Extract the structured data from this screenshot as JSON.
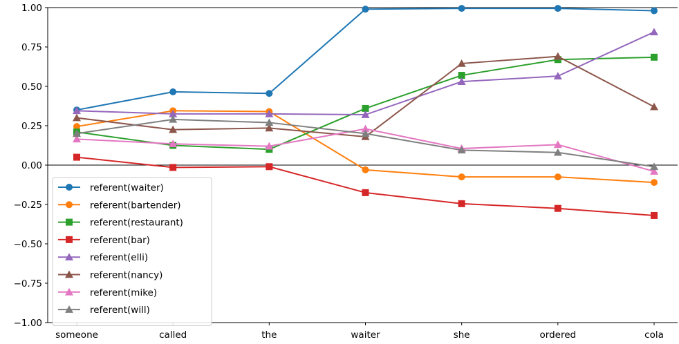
{
  "chart_data": {
    "type": "line",
    "categories": [
      "someone",
      "called",
      "the",
      "waiter",
      "she",
      "ordered",
      "cola"
    ],
    "ylim": [
      -1.0,
      1.0
    ],
    "yticks": [
      -1.0,
      -0.75,
      -0.5,
      -0.25,
      0.0,
      0.25,
      0.5,
      0.75,
      1.0
    ],
    "ytick_labels": [
      "−1.00",
      "−0.75",
      "−0.50",
      "−0.25",
      "0.00",
      "0.25",
      "0.50",
      "0.75",
      "1.00"
    ],
    "zero_line": true,
    "grid": false,
    "legend_position": "lower-left",
    "series": [
      {
        "name": "referent(waiter)",
        "color": "#1f77b4",
        "marker": "circle",
        "values": [
          0.35,
          0.465,
          0.455,
          0.99,
          0.995,
          0.995,
          0.98
        ]
      },
      {
        "name": "referent(bartender)",
        "color": "#ff7f0e",
        "marker": "circle",
        "values": [
          0.245,
          0.345,
          0.34,
          -0.03,
          -0.075,
          -0.075,
          -0.11
        ]
      },
      {
        "name": "referent(restaurant)",
        "color": "#2ca02c",
        "marker": "square",
        "values": [
          0.21,
          0.125,
          0.1,
          0.36,
          0.57,
          0.67,
          0.685
        ]
      },
      {
        "name": "referent(bar)",
        "color": "#d62728",
        "marker": "square",
        "values": [
          0.05,
          -0.015,
          -0.01,
          -0.175,
          -0.245,
          -0.275,
          -0.32
        ]
      },
      {
        "name": "referent(elli)",
        "color": "#9467bd",
        "marker": "triangle",
        "values": [
          0.345,
          0.325,
          0.325,
          0.32,
          0.53,
          0.565,
          0.845
        ]
      },
      {
        "name": "referent(nancy)",
        "color": "#8c564b",
        "marker": "triangle",
        "values": [
          0.3,
          0.225,
          0.235,
          0.18,
          0.645,
          0.69,
          0.37
        ]
      },
      {
        "name": "referent(mike)",
        "color": "#e377c2",
        "marker": "triangle",
        "values": [
          0.165,
          0.135,
          0.12,
          0.23,
          0.105,
          0.13,
          -0.04
        ]
      },
      {
        "name": "referent(will)",
        "color": "#7f7f7f",
        "marker": "triangle",
        "values": [
          0.2,
          0.29,
          0.27,
          0.2,
          0.095,
          0.08,
          -0.01
        ]
      }
    ]
  }
}
